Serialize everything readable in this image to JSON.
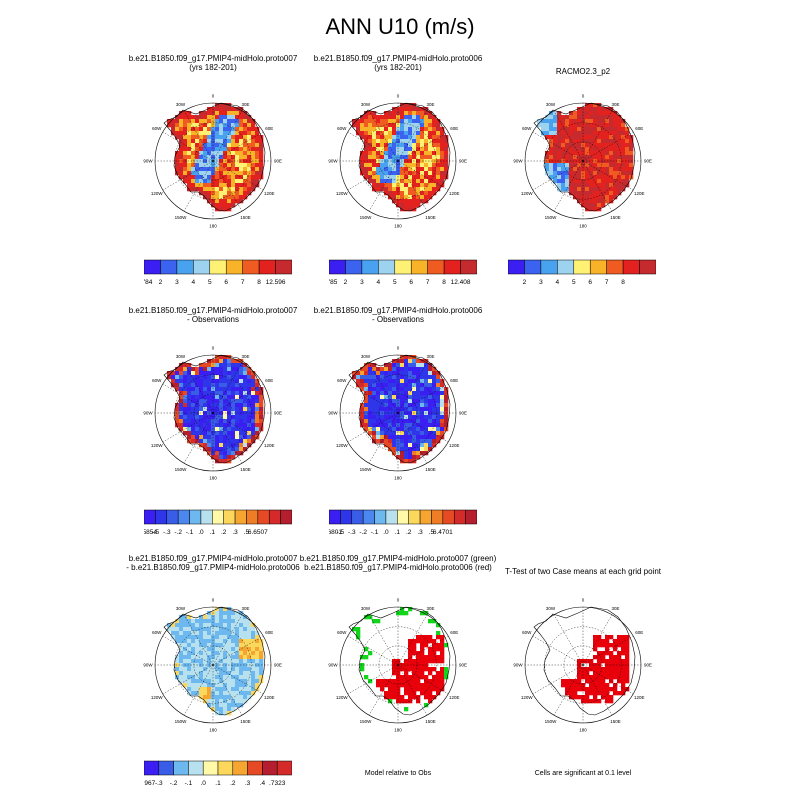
{
  "figure": {
    "title": "ANN U10 (m/s)"
  },
  "palettes": {
    "abs": [
      "#3b1ef2",
      "#3c62f0",
      "#49a2ef",
      "#9dd3ee",
      "#fff174",
      "#f8b329",
      "#ef5b20",
      "#e3211f",
      "#c52a2e"
    ],
    "diff": [
      "#3b1ef2",
      "#2f36ea",
      "#3a5de7",
      "#4b87ee",
      "#6cb8ef",
      "#b7e1ef",
      "#fff9a8",
      "#fbd85c",
      "#f6a630",
      "#ef7d25",
      "#e64a24",
      "#d42a2a",
      "#b51e2e"
    ],
    "sig_red": "#e8000b",
    "sig_green": "#12d41a"
  },
  "panels": {
    "p1": {
      "title_line1": "b.e21.B1850.f09_g17.PMIP4-midHolo.proto007",
      "title_line2": "(yrs 182-201)",
      "colorbar": {
        "min_label": ".784",
        "labels": [
          "2",
          "3",
          "4",
          "5",
          "6",
          "7",
          "8"
        ],
        "max_label": "12.596"
      }
    },
    "p2": {
      "title_line1": "b.e21.B1850.f09_g17.PMIP4-midHolo.proto006",
      "title_line2": "(yrs 182-201)",
      "colorbar": {
        "min_label": ".785",
        "labels": [
          "2",
          "3",
          "4",
          "5",
          "6",
          "7",
          "8"
        ],
        "max_label": "12.408"
      }
    },
    "p3": {
      "title_line1": "RACMO2.3_p2",
      "colorbar": {
        "labels": [
          "2",
          "3",
          "4",
          "5",
          "6",
          "7",
          "8"
        ]
      }
    },
    "p4": {
      "title_line1": "b.e21.B1850.f09_g17.PMIP4-midHolo.proto007",
      "title_line2": "- Observations",
      "colorbar": {
        "min_label": "-2.5854",
        "labels": [
          "-.5",
          "-.3",
          "-.2",
          "-.1",
          ".0",
          ".1",
          ".2",
          ".3",
          ".5"
        ],
        "max_label": "6.6507"
      }
    },
    "p5": {
      "title_line1": "b.e21.B1850.f09_g17.PMIP4-midHolo.proto006",
      "title_line2": "- Observations",
      "colorbar": {
        "min_label": "-2.6801",
        "labels": [
          "-.5",
          "-.3",
          "-.2",
          "-.1",
          ".0",
          ".1",
          ".2",
          ".3",
          ".5"
        ],
        "max_label": "6.4701"
      }
    },
    "p7": {
      "title_line1": "b.e21.B1850.f09_g17.PMIP4-midHolo.proto007",
      "title_line2": "- b.e21.B1850.f09_g17.PMIP4-midHolo.proto006",
      "colorbar": {
        "min_label": "-1.967",
        "labels": [
          "-.3",
          "-.2",
          "-.1",
          ".0",
          ".1",
          ".2",
          ".3",
          ".4"
        ],
        "max_label": ".7323"
      }
    },
    "p8": {
      "title_line1": "b.e21.B1850.f09_g17.PMIP4-midHolo.proto007 (green)",
      "title_line2": "b.e21.B1850.f09_g17.PMIP4-midHolo.proto006 (red)",
      "note": "Model relative to Obs"
    },
    "p9": {
      "title_line1": "T-Test of two Case means at each grid point",
      "note": "Cells are significant at 0.1 level"
    }
  },
  "map_labels": {
    "lon": [
      "0",
      "30E",
      "60E",
      "90E",
      "120E",
      "150E",
      "180",
      "150W",
      "120W",
      "90W",
      "60W",
      "30W"
    ]
  },
  "chart_data": [
    {
      "type": "heatmap",
      "panel": "p1",
      "title": "b.e21.B1850.f09_g17.PMIP4-midHolo.proto007 (yrs 182-201)",
      "projection": "south polar stereographic",
      "field": "ANN U10 (m/s)",
      "levels": [
        2,
        3,
        4,
        5,
        6,
        7,
        8
      ],
      "range": [
        0.784,
        12.596
      ],
      "pattern": "high (7-12) along coast and margins, low (2-4) over interior plateau"
    },
    {
      "type": "heatmap",
      "panel": "p2",
      "title": "b.e21.B1850.f09_g17.PMIP4-midHolo.proto006 (yrs 182-201)",
      "projection": "south polar stereographic",
      "field": "ANN U10 (m/s)",
      "levels": [
        2,
        3,
        4,
        5,
        6,
        7,
        8
      ],
      "range": [
        0.785,
        12.408
      ],
      "pattern": "high (7-12) along coast and margins, low (2-4) over interior plateau"
    },
    {
      "type": "heatmap",
      "panel": "p3",
      "title": "RACMO2.3_p2",
      "projection": "south polar stereographic",
      "field": "ANN U10 (m/s)",
      "levels": [
        2,
        3,
        4,
        5,
        6,
        7,
        8
      ],
      "pattern": "mostly high (6-8+) with low values in Ross/Weddell shelves"
    },
    {
      "type": "heatmap",
      "panel": "p4",
      "title": "b.e21.B1850.f09_g17.PMIP4-midHolo.proto007 - Observations",
      "levels": [
        -0.5,
        -0.3,
        -0.2,
        -0.1,
        0.0,
        0.1,
        0.2,
        0.3,
        0.5
      ],
      "range": [
        -2.5854,
        6.6507
      ],
      "pattern": "negative (< -0.5) over most of the interior, positive (> 0.5) along coast"
    },
    {
      "type": "heatmap",
      "panel": "p5",
      "title": "b.e21.B1850.f09_g17.PMIP4-midHolo.proto006 - Observations",
      "levels": [
        -0.5,
        -0.3,
        -0.2,
        -0.1,
        0.0,
        0.1,
        0.2,
        0.3,
        0.5
      ],
      "range": [
        -2.6801,
        6.4701
      ],
      "pattern": "negative (< -0.5) over most of the interior, positive (> 0.5) along coast"
    },
    {
      "type": "heatmap",
      "panel": "p7",
      "title": "b.e21.B1850.f09_g17.PMIP4-midHolo.proto007 - b.e21.B1850.f09_g17.PMIP4-midHolo.proto006",
      "levels": [
        -0.3,
        -0.2,
        -0.1,
        0.0,
        0.1,
        0.2,
        0.3,
        0.4
      ],
      "range": [
        -1.967,
        0.7323
      ],
      "pattern": "mostly -0.1 to 0.0 with small positive patches near coast"
    },
    {
      "type": "heatmap",
      "panel": "p8",
      "title": "Model relative to Obs significance",
      "series": [
        {
          "name": "b.e21.B1850.f09_g17.PMIP4-midHolo.proto007 (green)"
        },
        {
          "name": "b.e21.B1850.f09_g17.PMIP4-midHolo.proto006 (red)"
        }
      ],
      "pattern": "red cells over East Antarctic plateau, green cells scattered at edges"
    },
    {
      "type": "heatmap",
      "panel": "p9",
      "title": "T-Test of two Case means at each grid point",
      "note": "Cells are significant at 0.1 level",
      "pattern": "red significant cells over East Antarctica"
    }
  ]
}
